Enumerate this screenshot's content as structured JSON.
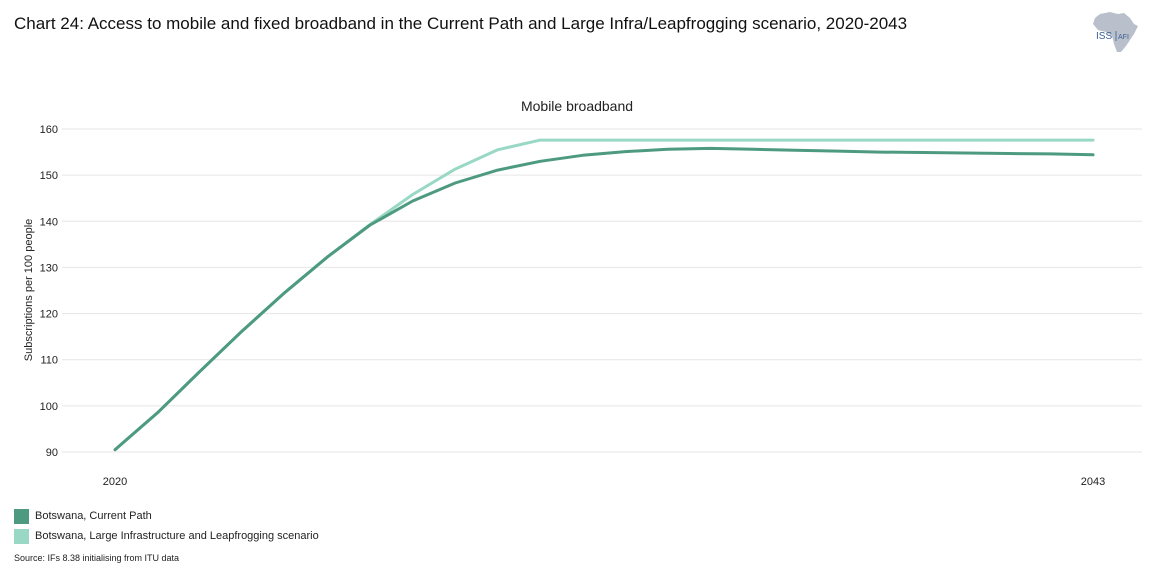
{
  "header": {
    "title": "Chart 24: Access to mobile and fixed broadband in the Current Path and Large Infra/Leapfrogging scenario, 2020-2043"
  },
  "logo": {
    "text_iss": "ISS",
    "text_afi": "AFI",
    "color": "#b9c0cc",
    "text_color": "#3b5f8f"
  },
  "colors": {
    "current_path": "#4d9a80",
    "scenario": "#9ad8c6",
    "grid": "#e6e6e6"
  },
  "chart_data": {
    "type": "line",
    "title": "Mobile broadband",
    "xlabel": "",
    "ylabel": "Subscriptions per 100 people",
    "x": [
      2020,
      2021,
      2022,
      2023,
      2024,
      2025,
      2026,
      2027,
      2028,
      2029,
      2030,
      2031,
      2032,
      2033,
      2034,
      2035,
      2036,
      2037,
      2038,
      2039,
      2040,
      2041,
      2042,
      2043
    ],
    "x_tick_labels": [
      "2020",
      "2043"
    ],
    "ylim": [
      90,
      160
    ],
    "y_ticks": [
      90,
      100,
      110,
      120,
      130,
      140,
      150,
      160
    ],
    "grid": true,
    "legend_position": "bottom-left",
    "series": [
      {
        "name": "Botswana, Current Path",
        "values": [
          90.5,
          98.5,
          107.5,
          116.3,
          124.6,
          132.3,
          139.2,
          144.4,
          148.3,
          151.1,
          153.0,
          154.3,
          155.1,
          155.6,
          155.8,
          155.6,
          155.4,
          155.2,
          155.0,
          154.9,
          154.8,
          154.7,
          154.6,
          154.4
        ]
      },
      {
        "name": "Botswana, Large Infrastructure and Leapfrogging scenario",
        "values": [
          90.5,
          98.5,
          107.5,
          116.3,
          124.6,
          132.3,
          139.3,
          145.8,
          151.3,
          155.5,
          157.6,
          157.6,
          157.6,
          157.6,
          157.6,
          157.6,
          157.6,
          157.6,
          157.6,
          157.6,
          157.6,
          157.6,
          157.6,
          157.6
        ]
      }
    ]
  },
  "footer": {
    "source": "Source: IFs 8.38 initialising from ITU data"
  }
}
